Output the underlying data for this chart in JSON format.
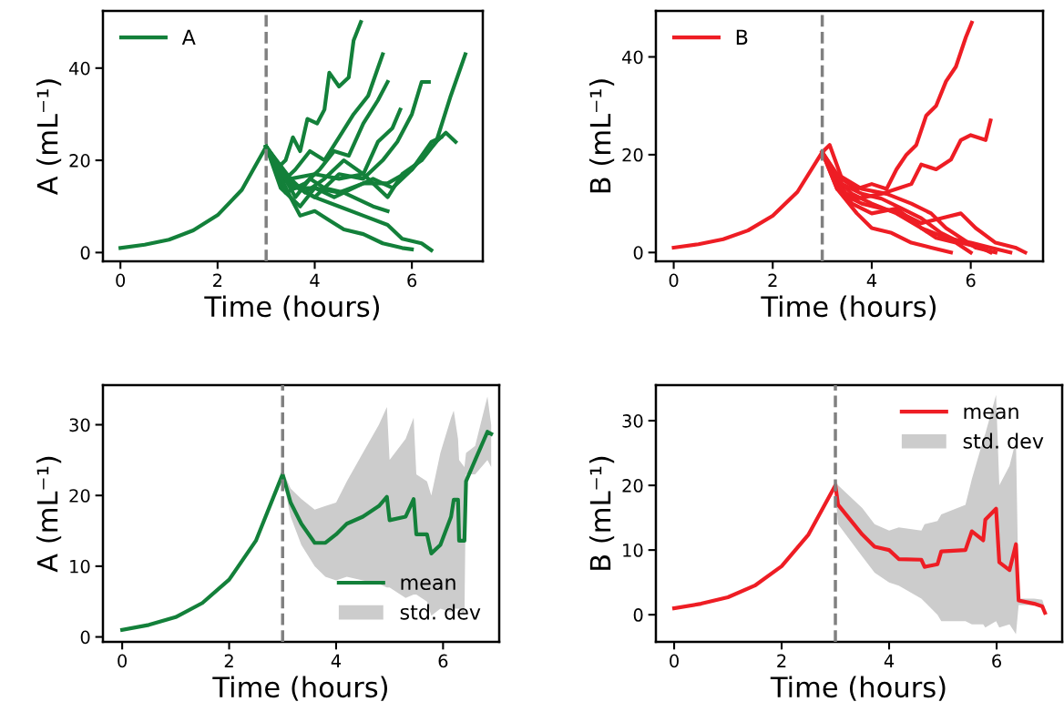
{
  "chart_data": [
    {
      "type": "line",
      "xlabel": "Time (hours)",
      "ylabel": "A (mL⁻¹)",
      "xlim": [
        -0.36,
        7.46
      ],
      "ylim": [
        -1.9,
        52.4
      ],
      "xticks": [
        0,
        2,
        4,
        6
      ],
      "yticks": [
        0,
        20,
        40
      ],
      "legend": "upper left",
      "grid": false,
      "ref_lines": [
        {
          "axis": "x",
          "value": 3,
          "color": "#808080",
          "line_style": "dashed"
        }
      ],
      "series": [
        {
          "name": "A",
          "color": "#13803a",
          "x": [
            0,
            0.5,
            1,
            1.5,
            2,
            2.5,
            3,
            3.2,
            3.4,
            3.55,
            3.7,
            3.85,
            4.05,
            4.2,
            4.3,
            4.5,
            4.7,
            4.8,
            4.95
          ],
          "values": [
            1,
            1.7,
            2.8,
            4.8,
            8.1,
            13.6,
            23,
            18,
            20,
            25,
            22,
            29,
            28,
            31,
            39,
            36,
            38,
            46,
            50
          ]
        },
        {
          "color": "#13803a",
          "x": [
            3,
            3.3,
            3.6,
            3.9,
            4.2,
            4.5,
            4.8,
            5.1,
            5.3,
            5.4
          ],
          "values": [
            23,
            15,
            18,
            22,
            20,
            25,
            30,
            34,
            40,
            43
          ]
        },
        {
          "color": "#13803a",
          "x": [
            3,
            3.4,
            3.8,
            4.1,
            4.4,
            4.7,
            5.0,
            5.3,
            5.5
          ],
          "values": [
            23,
            13,
            15,
            18,
            22,
            21,
            28,
            33,
            37
          ]
        },
        {
          "color": "#13803a",
          "x": [
            3,
            3.5,
            4.0,
            4.5,
            5.0,
            5.4,
            5.7,
            6.0,
            6.2,
            6.35
          ],
          "values": [
            23,
            15,
            12,
            17,
            16,
            20,
            24,
            30,
            37,
            37
          ]
        },
        {
          "color": "#13803a",
          "x": [
            3,
            3.4,
            3.8,
            4.2,
            4.6,
            5.0,
            5.3,
            5.6,
            5.76
          ],
          "values": [
            23,
            17,
            13,
            16,
            20,
            17,
            24,
            27,
            31
          ]
        },
        {
          "color": "#13803a",
          "x": [
            3,
            3.5,
            4.0,
            4.5,
            5.0,
            5.5,
            6.0,
            6.5,
            6.8,
            7.1
          ],
          "values": [
            23,
            14,
            14,
            13,
            15,
            15,
            18,
            24,
            34,
            43
          ]
        },
        {
          "color": "#13803a",
          "x": [
            3,
            3.5,
            4.0,
            4.5,
            5.0,
            5.5,
            5.8,
            6.2,
            6.5,
            6.7,
            6.9
          ],
          "values": [
            23,
            16,
            17,
            16,
            17,
            12,
            17,
            20,
            24,
            26,
            24
          ]
        },
        {
          "color": "#13803a",
          "x": [
            3,
            3.5,
            4.0,
            4.5,
            5.0,
            5.5,
            5.8,
            6.2,
            6.4
          ],
          "values": [
            23,
            15,
            12,
            10,
            8,
            6,
            3,
            2,
            0.5
          ]
        },
        {
          "color": "#13803a",
          "x": [
            3,
            3.5,
            3.7,
            4.0,
            4.3,
            4.6,
            5.0,
            5.4,
            5.8,
            6.0
          ],
          "values": [
            23,
            12,
            8,
            9,
            7,
            5,
            4,
            2,
            1,
            0.7
          ]
        },
        {
          "color": "#13803a",
          "x": [
            3,
            3.3,
            3.7,
            4.0,
            4.4,
            4.8,
            5.2,
            5.6,
            6.0,
            6.4,
            6.6
          ],
          "values": [
            23,
            14,
            10,
            14,
            12,
            14,
            16,
            14,
            18,
            24,
            25
          ]
        },
        {
          "color": "#13803a",
          "x": [
            3,
            3.3,
            3.6,
            3.9,
            4.2,
            4.6,
            5.0,
            5.2,
            5.5
          ],
          "values": [
            23,
            18,
            12,
            16,
            14,
            13,
            11,
            10,
            9
          ]
        }
      ]
    },
    {
      "type": "line",
      "xlabel": "Time (hours)",
      "ylabel": "B (mL⁻¹)",
      "xlim": [
        -0.36,
        7.46
      ],
      "ylim": [
        -1.8,
        49.4
      ],
      "xticks": [
        0,
        2,
        4,
        6
      ],
      "yticks": [
        0,
        20,
        40
      ],
      "legend": "upper left",
      "grid": false,
      "ref_lines": [
        {
          "axis": "x",
          "value": 3,
          "color": "#808080",
          "line_style": "dashed"
        }
      ],
      "series": [
        {
          "name": "B",
          "color": "#ee1d24",
          "x": [
            0,
            0.5,
            1,
            1.5,
            2,
            2.5,
            3,
            3.15,
            3.4,
            3.7,
            4.0,
            4.3,
            4.5,
            4.7,
            4.9,
            5.1,
            5.3,
            5.5,
            5.7,
            5.9,
            6.02
          ],
          "values": [
            1,
            1.7,
            2.7,
            4.5,
            7.5,
            12.4,
            20.5,
            22,
            15,
            13,
            14,
            13,
            17,
            20,
            22,
            28,
            30,
            35,
            38,
            44,
            47
          ]
        },
        {
          "color": "#ee1d24",
          "x": [
            3,
            3.3,
            3.7,
            4.2,
            4.5,
            4.8,
            5.0,
            5.3,
            5.6,
            5.8,
            6.0,
            6.3,
            6.4
          ],
          "values": [
            20.5,
            13,
            11,
            12,
            13,
            14,
            18,
            17,
            19,
            23,
            24,
            23,
            27
          ]
        },
        {
          "color": "#ee1d24",
          "x": [
            3,
            3.4,
            3.8,
            4.2,
            4.6,
            5.0,
            5.4,
            5.8,
            6.1,
            6.5,
            6.9,
            7.1
          ],
          "values": [
            20.5,
            12,
            10,
            9,
            8,
            6,
            7,
            8,
            5,
            2,
            1,
            0
          ]
        },
        {
          "color": "#ee1d24",
          "x": [
            3,
            3.3,
            3.6,
            4.0,
            4.5,
            5.0,
            5.5,
            6.0,
            6.4,
            6.8
          ],
          "values": [
            20.5,
            15,
            10,
            8,
            9,
            5,
            3,
            2,
            1,
            0
          ]
        },
        {
          "color": "#ee1d24",
          "x": [
            3,
            3.3,
            3.7,
            4.0,
            4.4,
            4.8,
            5.2,
            5.6
          ],
          "values": [
            20.5,
            13,
            8,
            5,
            4,
            2,
            1,
            0
          ]
        },
        {
          "color": "#ee1d24",
          "x": [
            3,
            3.2,
            3.6,
            4.0,
            4.5,
            5.0,
            5.3,
            5.7,
            6.0
          ],
          "values": [
            20.5,
            16,
            12,
            10,
            8,
            5,
            3,
            2,
            0
          ]
        },
        {
          "color": "#ee1d24",
          "x": [
            3,
            3.4,
            3.8,
            4.2,
            4.6,
            5.0,
            5.4,
            5.8,
            6.2,
            6.4
          ],
          "values": [
            20.5,
            14,
            12,
            11,
            9,
            7,
            4,
            2,
            1,
            0
          ]
        },
        {
          "color": "#ee1d24",
          "x": [
            3,
            3.3,
            3.8,
            4.3,
            4.8,
            5.2,
            5.5,
            5.8,
            6.1,
            6.5
          ],
          "values": [
            20.5,
            16,
            13,
            12,
            10,
            8,
            5,
            3,
            1,
            0
          ]
        }
      ]
    },
    {
      "type": "line",
      "xlabel": "Time (hours)",
      "ylabel": "A (mL⁻¹)",
      "xlim": [
        -0.36,
        7.05
      ],
      "ylim": [
        -0.7,
        35.6
      ],
      "xticks": [
        0,
        2,
        4,
        6
      ],
      "yticks": [
        0,
        10,
        20,
        30
      ],
      "legend": "lower right",
      "grid": false,
      "ref_lines": [
        {
          "axis": "x",
          "value": 3,
          "color": "#808080",
          "line_style": "dashed"
        }
      ],
      "series": [
        {
          "name": "mean",
          "color": "#13803a",
          "x": [
            0,
            0.5,
            1,
            1.5,
            2,
            2.5,
            3.0,
            3.15,
            3.35,
            3.6,
            3.8,
            4.0,
            4.2,
            4.5,
            4.8,
            4.95,
            5.0,
            5.3,
            5.45,
            5.5,
            5.7,
            5.78,
            5.95,
            6.15,
            6.2,
            6.28,
            6.3,
            6.4,
            6.43,
            6.6,
            6.83,
            6.9
          ],
          "values": [
            1,
            1.7,
            2.8,
            4.8,
            8.1,
            13.6,
            23,
            19,
            16,
            13.3,
            13.3,
            14.5,
            16,
            17,
            18.5,
            19.8,
            16.5,
            17,
            19.5,
            14.5,
            14.5,
            11.8,
            13,
            17,
            19.4,
            19.4,
            13.6,
            13.6,
            22,
            25,
            29,
            28.7
          ]
        },
        {
          "name": "std. dev",
          "color": "#cccccc",
          "x": [
            3.0,
            3.15,
            3.35,
            3.6,
            3.8,
            4.0,
            4.2,
            4.5,
            4.8,
            4.95,
            5.0,
            5.3,
            5.45,
            5.5,
            5.7,
            5.78,
            5.95,
            6.15,
            6.2,
            6.28,
            6.3,
            6.4,
            6.43,
            6.6,
            6.83,
            6.9
          ],
          "values": [
            null,
            null,
            null,
            null,
            null,
            null,
            null,
            null,
            null,
            null,
            null,
            null,
            null,
            null,
            null,
            null,
            null,
            null,
            null,
            null,
            null,
            null,
            null,
            null,
            null,
            null
          ],
          "upper": [
            23.5,
            21,
            19.5,
            18,
            18.5,
            19,
            22,
            26,
            30,
            32.5,
            25,
            28,
            31,
            23,
            22,
            20,
            26,
            31,
            32,
            28,
            25,
            24,
            26,
            27,
            34,
            30
          ],
          "lower": [
            22.5,
            17,
            13,
            10,
            8.5,
            8,
            8.5,
            8,
            7.5,
            7,
            7,
            5.5,
            6,
            6,
            5,
            3,
            4,
            3.5,
            4,
            4,
            4,
            3,
            23,
            23,
            25,
            24
          ]
        }
      ]
    },
    {
      "type": "line",
      "xlabel": "Time (hours)",
      "ylabel": "B (mL⁻¹)",
      "xlim": [
        -0.34,
        7.22
      ],
      "ylim": [
        -4.2,
        35.5
      ],
      "xticks": [
        0,
        2,
        4,
        6
      ],
      "yticks": [
        0,
        10,
        20,
        30
      ],
      "legend": "upper right",
      "grid": false,
      "ref_lines": [
        {
          "axis": "x",
          "value": 3,
          "color": "#808080",
          "line_style": "dashed"
        }
      ],
      "series": [
        {
          "name": "mean",
          "color": "#ee1d24",
          "x": [
            0,
            0.5,
            1,
            1.5,
            2,
            2.5,
            3.0,
            3.05,
            3.5,
            3.73,
            4.0,
            4.18,
            4.6,
            4.66,
            4.9,
            4.97,
            5.42,
            5.54,
            5.75,
            5.79,
            5.99,
            6.05,
            6.24,
            6.36,
            6.41,
            6.7,
            6.85,
            6.9
          ],
          "values": [
            1,
            1.7,
            2.7,
            4.5,
            7.5,
            12.4,
            20,
            17,
            12.4,
            10.5,
            10,
            8.6,
            8.5,
            7.4,
            7.8,
            9.8,
            10,
            12.9,
            11.5,
            14.7,
            16.4,
            8.1,
            6.9,
            10.9,
            2.2,
            1.7,
            1.3,
            0.3
          ]
        },
        {
          "name": "std. dev",
          "color": "#cccccc",
          "x": [
            3.0,
            3.05,
            3.5,
            3.73,
            4.0,
            4.18,
            4.6,
            4.66,
            4.9,
            4.97,
            5.42,
            5.54,
            5.75,
            5.79,
            5.99,
            6.05,
            6.24,
            6.36,
            6.41,
            6.7,
            6.85,
            6.9
          ],
          "values": [
            null,
            null,
            null,
            null,
            null,
            null,
            null,
            null,
            null,
            null,
            null,
            null,
            null,
            null,
            null,
            null,
            null,
            null,
            null,
            null,
            null,
            null
          ],
          "upper": [
            21,
            20,
            16.5,
            14,
            13,
            13.5,
            13,
            14,
            14.5,
            15.5,
            17,
            21,
            27,
            28,
            34,
            20,
            23,
            27,
            2.5,
            2.5,
            2.3,
            1
          ],
          "lower": [
            19,
            14,
            9,
            6.5,
            5,
            4.5,
            2.5,
            2,
            0,
            -1,
            -1,
            -1.5,
            -1.5,
            -2,
            -1,
            -2,
            -1.5,
            -3,
            1.5,
            1.5,
            1,
            0
          ]
        }
      ]
    }
  ]
}
